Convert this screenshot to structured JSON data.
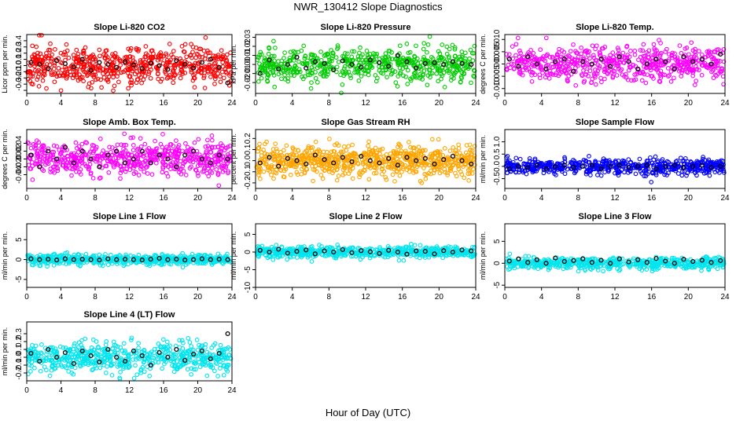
{
  "title": "NWR_130412  Slope Diagnostics",
  "xlabel": "Hour of Day (UTC)",
  "colors": {
    "noise_default": "#ff0000",
    "mean_points": "#000000",
    "axis": "#000000"
  },
  "chart_data": [
    {
      "type": "scatter",
      "title": "Slope Li-820 CO2",
      "ylabel": "Licor ppm per min.",
      "color": "#ff0000",
      "xlim": [
        0,
        24
      ],
      "ylim": [
        -0.45,
        0.5
      ],
      "xticks": [
        0,
        4,
        8,
        12,
        16,
        20,
        24
      ],
      "yticks": [
        -0.4,
        -0.3,
        -0.2,
        -0.1,
        0.0,
        0.1,
        0.2,
        0.3,
        0.4
      ],
      "yticklabels": [
        "",
        "-0.3",
        "-0.2",
        "-0.1",
        "0.0",
        "0.1",
        "0.2",
        "0.3",
        "0.4"
      ],
      "noise": {
        "sd": 0.16,
        "count": 600,
        "seed": 11
      },
      "mean_series": {
        "x": [
          0.5,
          1.5,
          2.5,
          3.5,
          4.5,
          5.5,
          6.5,
          7.5,
          8.5,
          9.5,
          10.5,
          11.5,
          12.5,
          13.5,
          14.5,
          15.5,
          16.5,
          17.5,
          18.5,
          19.5,
          20.5,
          21.5,
          22.5,
          23.5
        ],
        "y": [
          0.05,
          0.02,
          -0.05,
          0.08,
          0.03,
          -0.02,
          0.1,
          -0.08,
          0.05,
          0.02,
          -0.03,
          0.06,
          0.01,
          -0.05,
          0.04,
          0.0,
          -0.06,
          0.08,
          0.02,
          -0.04,
          0.05,
          0.1,
          -0.03,
          -0.28
        ]
      }
    },
    {
      "type": "scatter",
      "title": "Slope Li-820 Pressure",
      "ylabel": "kPa per min.",
      "color": "#00cc00",
      "xlim": [
        0,
        24
      ],
      "ylim": [
        -0.032,
        0.033
      ],
      "xticks": [
        0,
        4,
        8,
        12,
        16,
        20,
        24
      ],
      "yticks": [
        -0.02,
        -0.01,
        0.0,
        0.01,
        0.02,
        0.03
      ],
      "yticklabels": [
        "-0.02",
        "-0.01",
        "0.00",
        "0.01",
        "0.02",
        "0.03"
      ],
      "noise": {
        "sd": 0.009,
        "count": 600,
        "seed": 23
      },
      "mean_series": {
        "x": [
          0.5,
          1.5,
          2.5,
          3.5,
          4.5,
          5.5,
          6.5,
          7.5,
          8.5,
          9.5,
          10.5,
          11.5,
          12.5,
          13.5,
          14.5,
          15.5,
          16.5,
          17.5,
          18.5,
          19.5,
          20.5,
          21.5,
          22.5,
          23.5
        ],
        "y": [
          -0.01,
          0.005,
          -0.005,
          0.0,
          0.008,
          -0.004,
          0.003,
          0.001,
          -0.006,
          0.004,
          0.0,
          -0.003,
          0.005,
          0.002,
          -0.002,
          0.01,
          0.003,
          -0.004,
          0.001,
          0.002,
          0.0,
          0.003,
          0.001,
          0.0
        ]
      }
    },
    {
      "type": "scatter",
      "title": "Slope Li-820 Temp.",
      "ylabel": "degrees C per min.",
      "color": "#ff00ff",
      "xlim": [
        0,
        24
      ],
      "ylim": [
        -0.012,
        0.012
      ],
      "xticks": [
        0,
        4,
        8,
        12,
        16,
        20,
        24
      ],
      "yticks": [
        -0.01,
        -0.005,
        0.0,
        0.005,
        0.01
      ],
      "yticklabels": [
        "-0.010",
        "-0.005",
        "0.000",
        "0.005",
        "0.010"
      ],
      "noise": {
        "sd": 0.0035,
        "count": 600,
        "seed": 37
      },
      "mean_series": {
        "x": [
          0.5,
          1.5,
          2.5,
          3.5,
          4.5,
          5.5,
          6.5,
          7.5,
          8.5,
          9.5,
          10.5,
          11.5,
          12.5,
          13.5,
          14.5,
          15.5,
          16.5,
          17.5,
          18.5,
          19.5,
          20.5,
          21.5,
          22.5,
          23.5
        ],
        "y": [
          0.002,
          -0.001,
          0.003,
          0.0,
          -0.002,
          0.001,
          0.002,
          -0.003,
          0.001,
          0.0,
          0.002,
          -0.001,
          0.003,
          0.001,
          -0.002,
          0.0,
          0.002,
          0.001,
          -0.002,
          0.003,
          0.001,
          0.002,
          0.0,
          0.004
        ]
      }
    },
    {
      "type": "scatter",
      "title": "Slope Amb. Box Temp.",
      "ylabel": "degrees C per min.",
      "color": "#ff00ff",
      "xlim": [
        0,
        24
      ],
      "ylim": [
        -0.075,
        0.075
      ],
      "xticks": [
        0,
        4,
        8,
        12,
        16,
        20,
        24
      ],
      "yticks": [
        -0.04,
        -0.02,
        0.0,
        0.02,
        0.04
      ],
      "yticklabels": [
        "-0.04",
        "-0.02",
        "0.00",
        "0.02",
        "0.04"
      ],
      "noise": {
        "sd": 0.021,
        "count": 600,
        "seed": 41
      },
      "mean_series": {
        "x": [
          0.5,
          1.5,
          2.5,
          3.5,
          4.5,
          5.5,
          6.5,
          7.5,
          8.5,
          9.5,
          10.5,
          11.5,
          12.5,
          13.5,
          14.5,
          15.5,
          16.5,
          17.5,
          18.5,
          19.5,
          20.5,
          21.5,
          22.5,
          23.5
        ],
        "y": [
          0.01,
          -0.02,
          0.02,
          0.0,
          0.03,
          -0.01,
          0.02,
          0.0,
          -0.02,
          0.01,
          0.02,
          -0.01,
          0.0,
          0.02,
          -0.01,
          0.01,
          0.0,
          -0.02,
          0.01,
          0.02,
          0.0,
          -0.01,
          0.01,
          0.0
        ]
      }
    },
    {
      "type": "scatter",
      "title": "Slope Gas Stream RH",
      "ylabel": "percent per min.",
      "color": "#ffa500",
      "xlim": [
        0,
        24
      ],
      "ylim": [
        -0.25,
        0.28
      ],
      "xticks": [
        0,
        4,
        8,
        12,
        16,
        20,
        24
      ],
      "yticks": [
        -0.2,
        -0.1,
        0.0,
        0.1,
        0.2
      ],
      "yticklabels": [
        "-0.2",
        "-0.1",
        "0.0",
        "0.1",
        "0.2"
      ],
      "noise": {
        "sd": 0.07,
        "count": 750,
        "seed": 53
      },
      "mean_series": {
        "x": [
          0.5,
          1.5,
          2.5,
          3.5,
          4.5,
          5.5,
          6.5,
          7.5,
          8.5,
          9.5,
          10.5,
          11.5,
          12.5,
          13.5,
          14.5,
          15.5,
          16.5,
          17.5,
          18.5,
          19.5,
          20.5,
          21.5,
          22.5,
          23.5
        ],
        "y": [
          -0.02,
          0.03,
          -0.05,
          0.02,
          0.0,
          -0.03,
          0.05,
          0.01,
          -0.02,
          0.03,
          -0.01,
          0.04,
          0.0,
          -0.02,
          0.02,
          -0.04,
          0.03,
          0.0,
          0.02,
          -0.03,
          0.01,
          0.04,
          0.0,
          -0.03
        ]
      }
    },
    {
      "type": "scatter",
      "title": "Slope Sample Flow",
      "ylabel": "ml/min per min.",
      "color": "#0000ff",
      "xlim": [
        0,
        24
      ],
      "ylim": [
        -0.9,
        1.5
      ],
      "xticks": [
        0,
        4,
        8,
        12,
        16,
        20,
        24
      ],
      "yticks": [
        -0.5,
        0.0,
        0.5,
        1.0
      ],
      "yticklabels": [
        "-0.5",
        "0.0",
        "0.5",
        "1.0"
      ],
      "noise": {
        "sd": 0.16,
        "count": 600,
        "seed": 61
      },
      "mean_series": {
        "x": [
          0.5,
          1.5,
          2.5,
          3.5,
          4.5,
          5.5,
          6.5,
          7.5,
          8.5,
          9.5,
          10.5,
          11.5,
          12.5,
          13.5,
          14.5,
          15.5,
          16.5,
          17.5,
          18.5,
          19.5,
          20.5,
          21.5,
          22.5,
          23.5
        ],
        "y": [
          -0.1,
          0.0,
          -0.05,
          0.05,
          -0.1,
          0.0,
          0.05,
          -0.05,
          0.0,
          0.05,
          -0.1,
          0.0,
          0.05,
          -0.05,
          0.0,
          0.05,
          -0.1,
          0.0,
          0.05,
          -0.05,
          0.0,
          0.05,
          -0.05,
          0.0
        ]
      }
    },
    {
      "type": "scatter",
      "title": "Slope Line 1 Flow",
      "ylabel": "ml/min per min.",
      "color": "#00e5ee",
      "xlim": [
        0,
        24
      ],
      "ylim": [
        -7,
        9
      ],
      "xticks": [
        0,
        4,
        8,
        12,
        16,
        20,
        24
      ],
      "yticks": [
        -5,
        0,
        5
      ],
      "yticklabels": [
        "-5",
        "0",
        "5"
      ],
      "noise": {
        "sd": 0.6,
        "count": 600,
        "seed": 71
      },
      "mean_series": {
        "x": [
          0.5,
          1.5,
          2.5,
          3.5,
          4.5,
          5.5,
          6.5,
          7.5,
          8.5,
          9.5,
          10.5,
          11.5,
          12.5,
          13.5,
          14.5,
          15.5,
          16.5,
          17.5,
          18.5,
          19.5,
          20.5,
          21.5,
          22.5,
          23.5
        ],
        "y": [
          0.2,
          0.0,
          0.1,
          -0.1,
          0.2,
          0.0,
          0.1,
          0.0,
          -0.1,
          0.2,
          0.0,
          0.1,
          0.0,
          -0.1,
          0.1,
          0.3,
          0.0,
          0.1,
          -0.1,
          0.0,
          0.2,
          0.0,
          0.1,
          0.0
        ]
      }
    },
    {
      "type": "scatter",
      "title": "Slope Line 2 Flow",
      "ylabel": "ml/min per min.",
      "color": "#00e5ee",
      "xlim": [
        0,
        24
      ],
      "ylim": [
        -10,
        8
      ],
      "xticks": [
        0,
        4,
        8,
        12,
        16,
        20,
        24
      ],
      "yticks": [
        -10,
        -5,
        0,
        5
      ],
      "yticklabels": [
        "-10",
        "-5",
        "0",
        "5"
      ],
      "noise": {
        "sd": 0.8,
        "count": 600,
        "seed": 83
      },
      "mean_series": {
        "x": [
          0.5,
          1.5,
          2.5,
          3.5,
          4.5,
          5.5,
          6.5,
          7.5,
          8.5,
          9.5,
          10.5,
          11.5,
          12.5,
          13.5,
          14.5,
          15.5,
          16.5,
          17.5,
          18.5,
          19.5,
          20.5,
          21.5,
          22.5,
          23.5
        ],
        "y": [
          0.5,
          0.0,
          0.8,
          -0.3,
          0.2,
          0.6,
          -0.5,
          0.3,
          0.0,
          0.7,
          -0.2,
          0.4,
          0.1,
          -0.4,
          0.5,
          0.0,
          -0.6,
          0.3,
          0.2,
          -0.5,
          0.4,
          0.0,
          0.6,
          0.3
        ]
      }
    },
    {
      "type": "scatter",
      "title": "Slope Line 3 Flow",
      "ylabel": "ml/min per min.",
      "color": "#00e5ee",
      "xlim": [
        0,
        24
      ],
      "ylim": [
        -5.5,
        9
      ],
      "xticks": [
        0,
        4,
        8,
        12,
        16,
        20,
        24
      ],
      "yticks": [
        -5,
        0,
        5
      ],
      "yticklabels": [
        "-5",
        "0",
        "5"
      ],
      "noise": {
        "sd": 0.7,
        "count": 600,
        "seed": 97
      },
      "mean_series": {
        "x": [
          0.5,
          1.5,
          2.5,
          3.5,
          4.5,
          5.5,
          6.5,
          7.5,
          8.5,
          9.5,
          10.5,
          11.5,
          12.5,
          13.5,
          14.5,
          15.5,
          16.5,
          17.5,
          18.5,
          19.5,
          20.5,
          21.5,
          22.5,
          23.5
        ],
        "y": [
          0.5,
          1.0,
          0.2,
          0.8,
          0.0,
          1.2,
          0.4,
          0.6,
          1.0,
          0.2,
          0.7,
          0.0,
          1.0,
          0.3,
          0.8,
          0.2,
          1.1,
          0.5,
          0.0,
          0.9,
          0.4,
          0.7,
          0.2,
          0.6
        ]
      }
    },
    {
      "type": "scatter",
      "title": "Slope Line 4 (LT) Flow",
      "ylabel": "ml/min per min.",
      "color": "#00e5ee",
      "xlim": [
        0,
        24
      ],
      "ylim": [
        -0.3,
        0.45
      ],
      "xticks": [
        0,
        4,
        8,
        12,
        16,
        20,
        24
      ],
      "yticks": [
        -0.2,
        -0.1,
        0.0,
        0.1,
        0.2,
        0.3
      ],
      "yticklabels": [
        "-0.2",
        "-0.1",
        "0.0",
        "0.1",
        "0.2",
        "0.3"
      ],
      "noise": {
        "sd": 0.1,
        "count": 600,
        "seed": 107
      },
      "mean_series": {
        "x": [
          0.5,
          1.5,
          2.5,
          3.5,
          4.5,
          5.5,
          6.5,
          7.5,
          8.5,
          9.5,
          10.5,
          11.5,
          12.5,
          13.5,
          14.5,
          15.5,
          16.5,
          17.5,
          18.5,
          19.5,
          20.5,
          21.5,
          22.5,
          23.5
        ],
        "y": [
          0.05,
          -0.05,
          0.1,
          0.0,
          0.06,
          -0.08,
          0.08,
          0.02,
          -0.06,
          0.1,
          0.0,
          -0.05,
          0.08,
          0.02,
          -0.1,
          0.06,
          0.0,
          0.1,
          -0.04,
          0.04,
          0.08,
          -0.02,
          0.05,
          0.3
        ]
      }
    }
  ]
}
